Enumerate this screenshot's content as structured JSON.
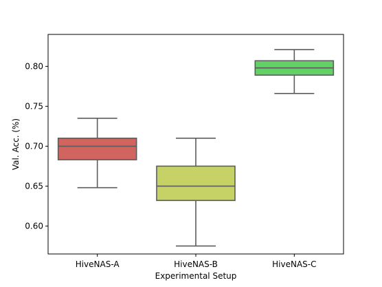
{
  "chart_data": {
    "type": "box",
    "title": "",
    "xlabel": "Experimental Setup",
    "ylabel": "Val. Acc. (%)",
    "ylim": [
      0.565,
      0.84
    ],
    "yticks": [
      0.6,
      0.65,
      0.7,
      0.75,
      0.8
    ],
    "ytick_labels": [
      "0.60",
      "0.65",
      "0.70",
      "0.75",
      "0.80"
    ],
    "categories": [
      "HiveNAS-A",
      "HiveNAS-B",
      "HiveNAS-C"
    ],
    "boxes": [
      {
        "category": "HiveNAS-A",
        "whisker_low": 0.648,
        "q1": 0.683,
        "median": 0.7,
        "q3": 0.71,
        "whisker_high": 0.735,
        "color": "#d1645f"
      },
      {
        "category": "HiveNAS-B",
        "whisker_low": 0.575,
        "q1": 0.632,
        "median": 0.65,
        "q3": 0.675,
        "whisker_high": 0.71,
        "color": "#c6d166"
      },
      {
        "category": "HiveNAS-C",
        "whisker_low": 0.766,
        "q1": 0.789,
        "median": 0.798,
        "q3": 0.807,
        "whisker_high": 0.821,
        "color": "#62d166"
      }
    ],
    "line_color": "#5c5c5c",
    "grid": false,
    "legend": "none"
  }
}
